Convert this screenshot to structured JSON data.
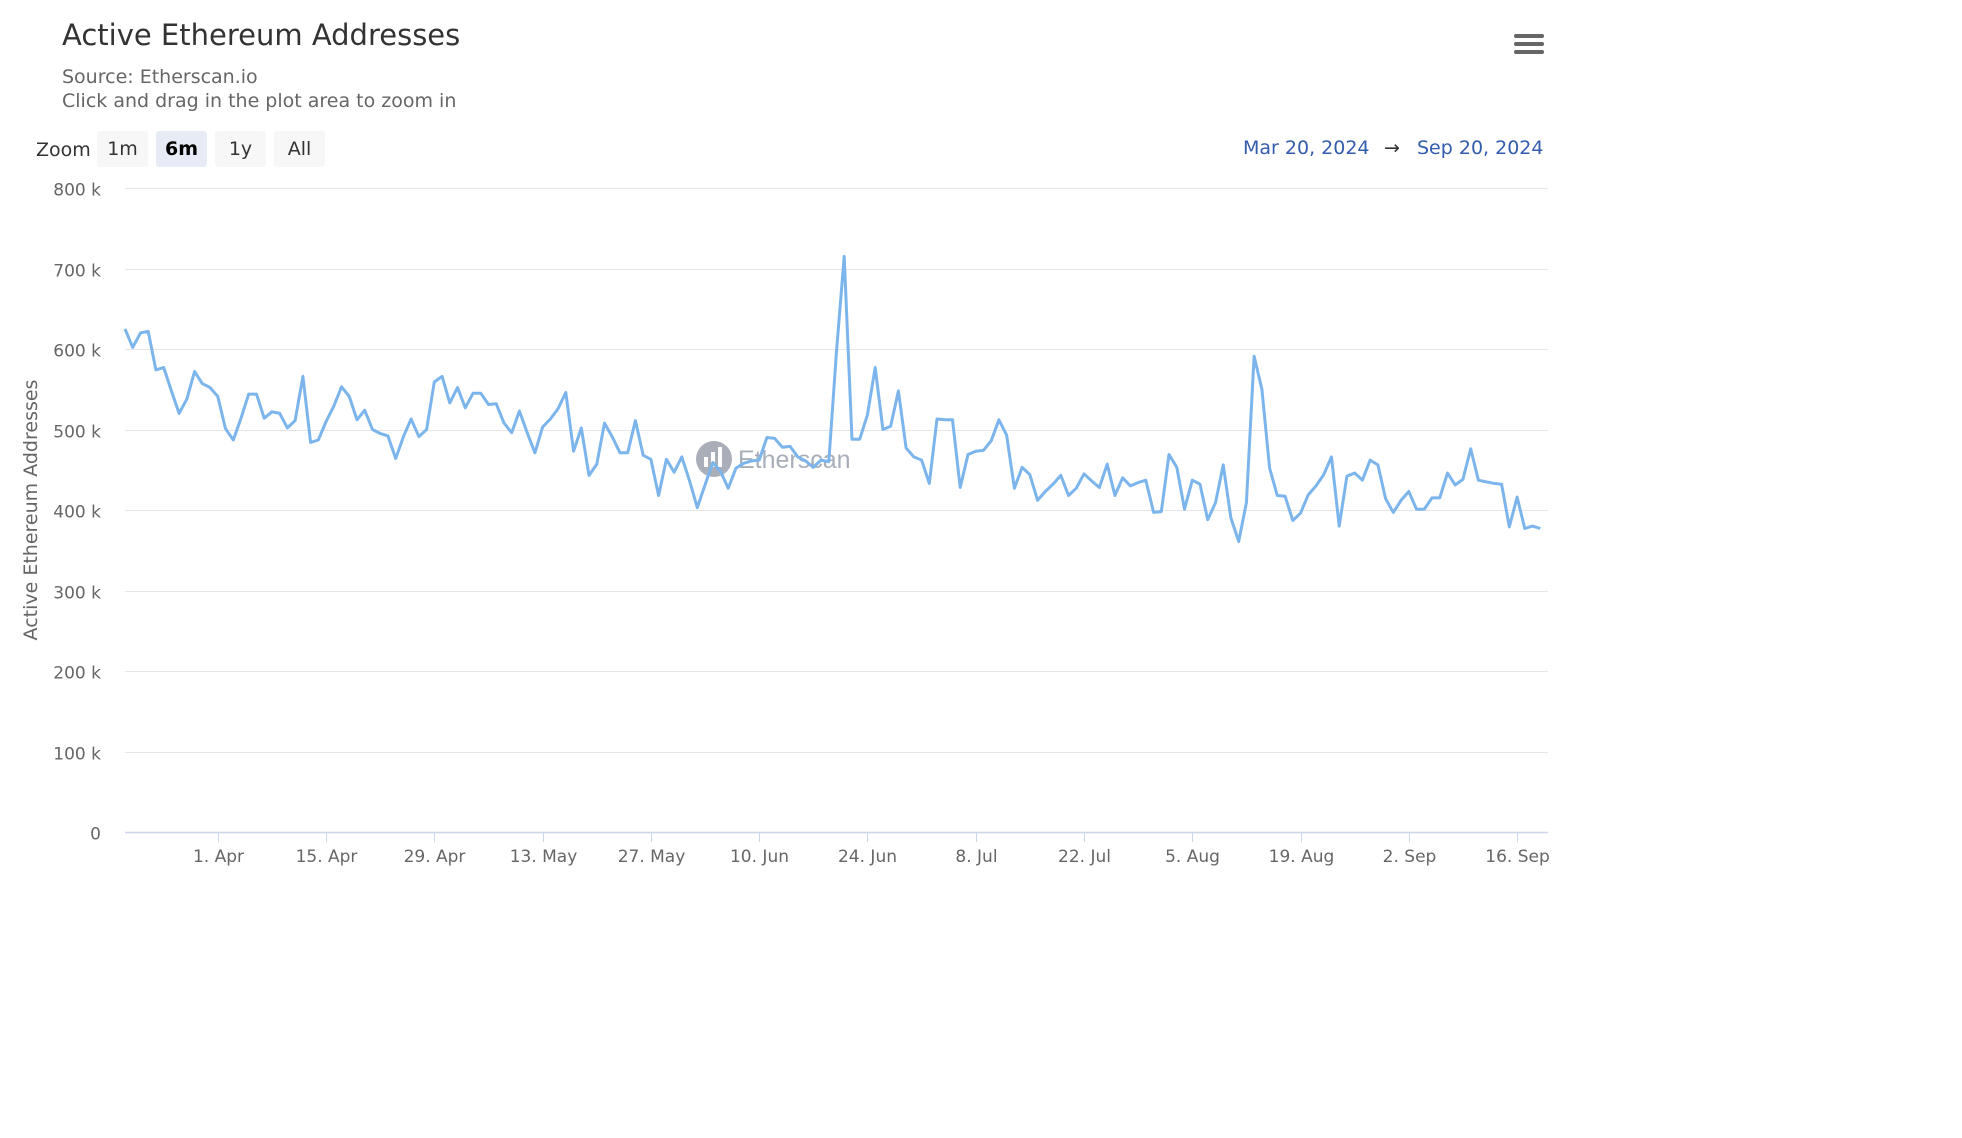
{
  "header": {
    "title": "Active Ethereum Addresses",
    "source": "Source: Etherscan.io",
    "hint": "Click and drag in the plot area to zoom in"
  },
  "toolbar": {
    "menu_icon": "hamburger-menu-icon",
    "zoom_label": "Zoom",
    "zoom_buttons": [
      "1m",
      "6m",
      "1y",
      "All"
    ],
    "active_zoom": "6m",
    "range_from": "Mar 20, 2024",
    "range_arrow": "→",
    "range_to": "Sep 20, 2024"
  },
  "watermark": {
    "text": "Etherscan",
    "icon": "etherscan-logo-icon"
  },
  "colors": {
    "line": "#7cb5ec",
    "grid": "#e6e6e6",
    "axis": "#ccd6eb",
    "range_text": "#335cad"
  },
  "chart_data": {
    "type": "line",
    "title": "Active Ethereum Addresses",
    "ylabel": "Active Ethereum Addresses",
    "xlabel": "",
    "ylim": [
      0,
      800000
    ],
    "xlim": [
      "2024-03-20",
      "2024-09-20"
    ],
    "y_ticks": [
      0,
      100000,
      200000,
      300000,
      400000,
      500000,
      600000,
      700000,
      800000
    ],
    "y_tick_labels": [
      "0",
      "100 k",
      "200 k",
      "300 k",
      "400 k",
      "500 k",
      "600 k",
      "700 k",
      "800 k"
    ],
    "x_ticks": [
      "2024-04-01",
      "2024-04-15",
      "2024-04-29",
      "2024-05-13",
      "2024-05-27",
      "2024-06-10",
      "2024-06-24",
      "2024-07-08",
      "2024-07-22",
      "2024-08-05",
      "2024-08-19",
      "2024-09-02",
      "2024-09-16"
    ],
    "x_tick_labels": [
      "1. Apr",
      "15. Apr",
      "29. Apr",
      "13. May",
      "27. May",
      "10. Jun",
      "24. Jun",
      "8. Jul",
      "22. Jul",
      "5. Aug",
      "19. Aug",
      "2. Sep",
      "16. Sep"
    ],
    "grid": true,
    "legend": "none",
    "start_date": "2024-03-20",
    "series": [
      {
        "values": [
          625000,
          602000,
          620000,
          622000,
          574000,
          577000,
          548000,
          520000,
          538000,
          572000,
          557000,
          552000,
          541000,
          501000,
          487000,
          514000,
          544000,
          544000,
          514000,
          522000,
          520000,
          502000,
          511000,
          566000,
          484000,
          487000,
          510000,
          529000,
          553000,
          541000,
          512000,
          524000,
          500000,
          495000,
          492000,
          464000,
          491000,
          513000,
          491000,
          500000,
          559000,
          566000,
          533000,
          552000,
          527000,
          545000,
          545000,
          531000,
          532000,
          508000,
          496000,
          523000,
          496000,
          471000,
          503000,
          513000,
          526000,
          546000,
          473000,
          502000,
          443000,
          457000,
          508000,
          491000,
          471000,
          471000,
          511000,
          468000,
          463000,
          418000,
          463000,
          447000,
          466000,
          436000,
          403000,
          431000,
          459000,
          448000,
          427000,
          452000,
          458000,
          461000,
          462000,
          490000,
          489000,
          478000,
          479000,
          466000,
          461000,
          453000,
          462000,
          460000,
          597000,
          715000,
          488000,
          488000,
          518000,
          577000,
          500000,
          504000,
          548000,
          477000,
          466000,
          462000,
          433000,
          513000,
          512000,
          512000,
          428000,
          469000,
          473000,
          474000,
          486000,
          512000,
          493000,
          427000,
          453000,
          444000,
          412000,
          423000,
          432000,
          443000,
          418000,
          427000,
          445000,
          436000,
          428000,
          457000,
          418000,
          440000,
          430000,
          434000,
          437000,
          397000,
          398000,
          469000,
          453000,
          401000,
          437000,
          432000,
          388000,
          409000,
          456000,
          390000,
          361000,
          409000,
          591000,
          550000,
          452000,
          418000,
          417000,
          387000,
          396000,
          419000,
          430000,
          444000,
          466000,
          380000,
          442000,
          446000,
          437000,
          462000,
          456000,
          414000,
          397000,
          412000,
          423000,
          401000,
          401000,
          415000,
          415000,
          446000,
          431000,
          438000,
          476000,
          437000,
          435000,
          433000,
          432000,
          379000,
          416000,
          377000,
          380000,
          377000
        ]
      }
    ]
  }
}
